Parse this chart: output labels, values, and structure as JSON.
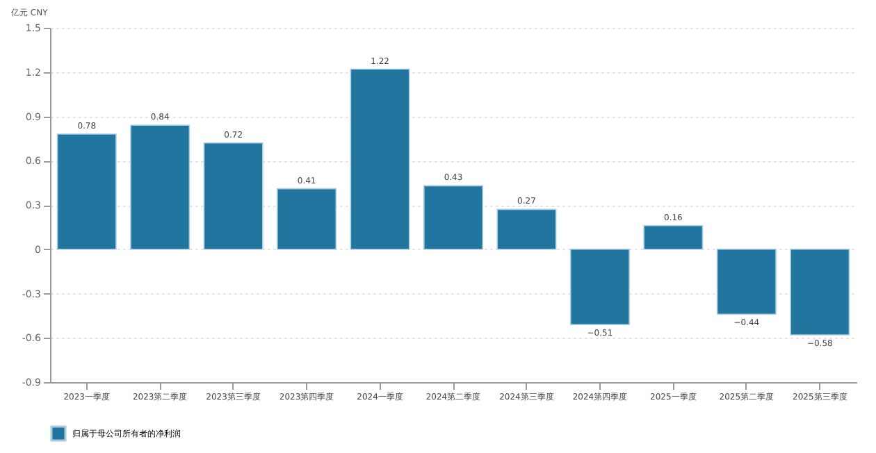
{
  "chart_data": {
    "type": "bar",
    "ylabel": "亿元 CNY",
    "categories": [
      "2023一季度",
      "2023第二季度",
      "2023第三季度",
      "2023第四季度",
      "2024一季度",
      "2024第二季度",
      "2024第三季度",
      "2024第四季度",
      "2025一季度",
      "2025第二季度",
      "2025第三季度"
    ],
    "series": [
      {
        "name": "归属于母公司所有者的净利润",
        "color": "#21759f",
        "values": [
          0.78,
          0.84,
          0.72,
          0.41,
          1.22,
          0.43,
          0.27,
          -0.51,
          0.16,
          -0.44,
          -0.58
        ]
      }
    ],
    "ylim": [
      -0.9,
      1.5
    ],
    "yticks": [
      -0.9,
      -0.6,
      -0.3,
      0,
      0.3,
      0.6,
      0.9,
      1.2,
      1.5
    ],
    "grid": "y",
    "legend": "bottom",
    "data_labels": true
  }
}
